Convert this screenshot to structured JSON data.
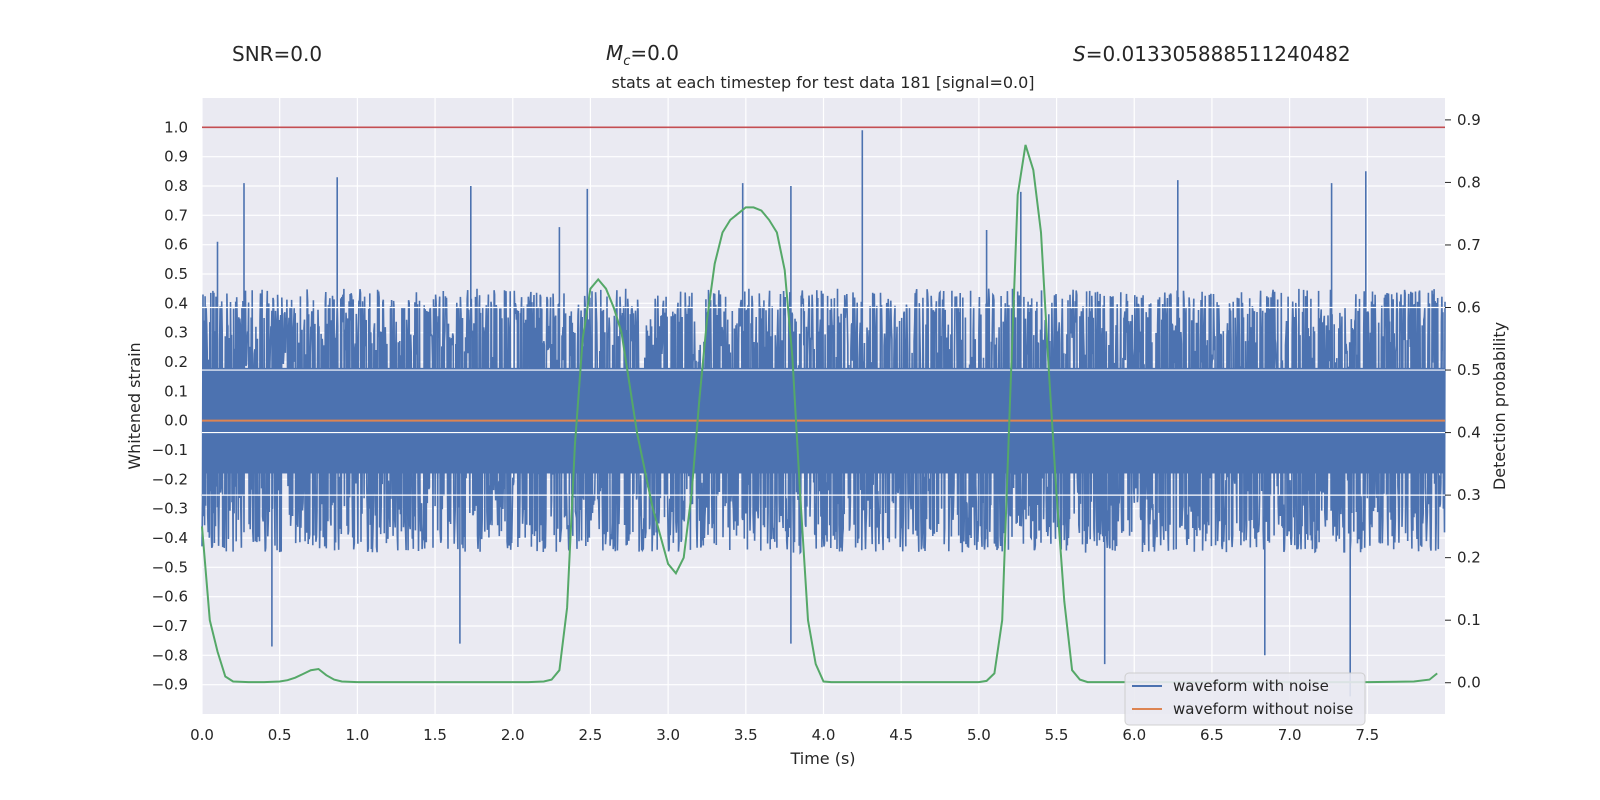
{
  "header": {
    "snr": "SNR=0.0",
    "mc_symbol": "M",
    "mc_sub": "c",
    "mc_value": "=0.0",
    "s_symbol": "S",
    "s_value": "=0.013305888511240482"
  },
  "chart_data": {
    "type": "line",
    "title": "stats at each timestep for test data 181 [signal=0.0]",
    "xlabel": "Time (s)",
    "ylabel": "Whitened strain",
    "ylabel_right": "Detection probability",
    "xlim": [
      0.0,
      8.0
    ],
    "ylim": [
      -1.0,
      1.1
    ],
    "ylim_right": [
      -0.05,
      0.935
    ],
    "xticks": [
      "0.0",
      "0.5",
      "1.0",
      "1.5",
      "2.0",
      "2.5",
      "3.0",
      "3.5",
      "4.0",
      "4.5",
      "5.0",
      "5.5",
      "6.0",
      "6.5",
      "7.0",
      "7.5"
    ],
    "yticks": [
      "1.0",
      "0.9",
      "0.8",
      "0.7",
      "0.6",
      "0.5",
      "0.4",
      "0.3",
      "0.2",
      "0.1",
      "0.0",
      "−0.1",
      "−0.2",
      "−0.3",
      "−0.4",
      "−0.5",
      "−0.6",
      "−0.7",
      "−0.8",
      "−0.9"
    ],
    "yticks_right": [
      "0.9",
      "0.8",
      "0.7",
      "0.6",
      "0.5",
      "0.4",
      "0.3",
      "0.2",
      "0.1",
      "0.0"
    ],
    "threshold_line": {
      "y": 1.0,
      "color": "#c44e52"
    },
    "noisy_series": {
      "name": "waveform with noise",
      "color": "#4c72b0",
      "typical_range": [
        -0.45,
        0.45
      ],
      "peaks": [
        [
          0.27,
          0.81
        ],
        [
          0.87,
          0.83
        ],
        [
          1.73,
          0.8
        ],
        [
          2.48,
          0.79
        ],
        [
          3.48,
          0.81
        ],
        [
          3.79,
          0.8
        ],
        [
          4.25,
          0.99
        ],
        [
          5.27,
          0.78
        ],
        [
          6.28,
          0.82
        ],
        [
          7.27,
          0.81
        ],
        [
          7.49,
          0.85
        ],
        [
          0.45,
          -0.77
        ],
        [
          1.66,
          -0.76
        ],
        [
          3.79,
          -0.76
        ],
        [
          5.81,
          -0.83
        ],
        [
          6.84,
          -0.8
        ],
        [
          7.39,
          -0.94
        ],
        [
          0.1,
          0.61
        ],
        [
          2.3,
          0.66
        ],
        [
          5.05,
          0.65
        ]
      ]
    },
    "clean_series": {
      "name": "waveform without noise",
      "color": "#dd8452",
      "value": 0.0
    },
    "probability_series": {
      "name": "detection probability",
      "color": "#55a868",
      "x": [
        0.0,
        0.05,
        0.1,
        0.15,
        0.2,
        0.3,
        0.4,
        0.5,
        0.55,
        0.6,
        0.65,
        0.7,
        0.75,
        0.8,
        0.85,
        0.9,
        1.0,
        1.5,
        2.0,
        2.1,
        2.2,
        2.25,
        2.3,
        2.35,
        2.4,
        2.45,
        2.5,
        2.55,
        2.6,
        2.65,
        2.7,
        2.8,
        2.9,
        3.0,
        3.05,
        3.1,
        3.15,
        3.2,
        3.25,
        3.3,
        3.35,
        3.4,
        3.45,
        3.5,
        3.55,
        3.6,
        3.65,
        3.7,
        3.75,
        3.8,
        3.85,
        3.9,
        3.95,
        4.0,
        4.05,
        4.5,
        5.0,
        5.05,
        5.1,
        5.15,
        5.2,
        5.25,
        5.3,
        5.35,
        5.4,
        5.45,
        5.5,
        5.55,
        5.6,
        5.65,
        5.7,
        6.0,
        6.5,
        7.0,
        7.5,
        7.8,
        7.9,
        7.95
      ],
      "y": [
        0.25,
        0.1,
        0.05,
        0.01,
        0.002,
        0.001,
        0.001,
        0.002,
        0.004,
        0.008,
        0.014,
        0.02,
        0.022,
        0.012,
        0.005,
        0.002,
        0.001,
        0.001,
        0.001,
        0.001,
        0.002,
        0.005,
        0.02,
        0.12,
        0.38,
        0.55,
        0.63,
        0.645,
        0.63,
        0.6,
        0.56,
        0.4,
        0.28,
        0.19,
        0.175,
        0.2,
        0.3,
        0.45,
        0.58,
        0.67,
        0.72,
        0.74,
        0.75,
        0.76,
        0.76,
        0.755,
        0.74,
        0.72,
        0.66,
        0.52,
        0.3,
        0.1,
        0.03,
        0.002,
        0.001,
        0.001,
        0.001,
        0.003,
        0.015,
        0.1,
        0.45,
        0.78,
        0.86,
        0.82,
        0.72,
        0.5,
        0.3,
        0.13,
        0.02,
        0.005,
        0.001,
        0.001,
        0.001,
        0.001,
        0.001,
        0.002,
        0.005,
        0.015
      ]
    },
    "legend": {
      "position": "bottom-right",
      "entries": [
        "waveform with noise",
        "waveform without noise"
      ]
    }
  }
}
